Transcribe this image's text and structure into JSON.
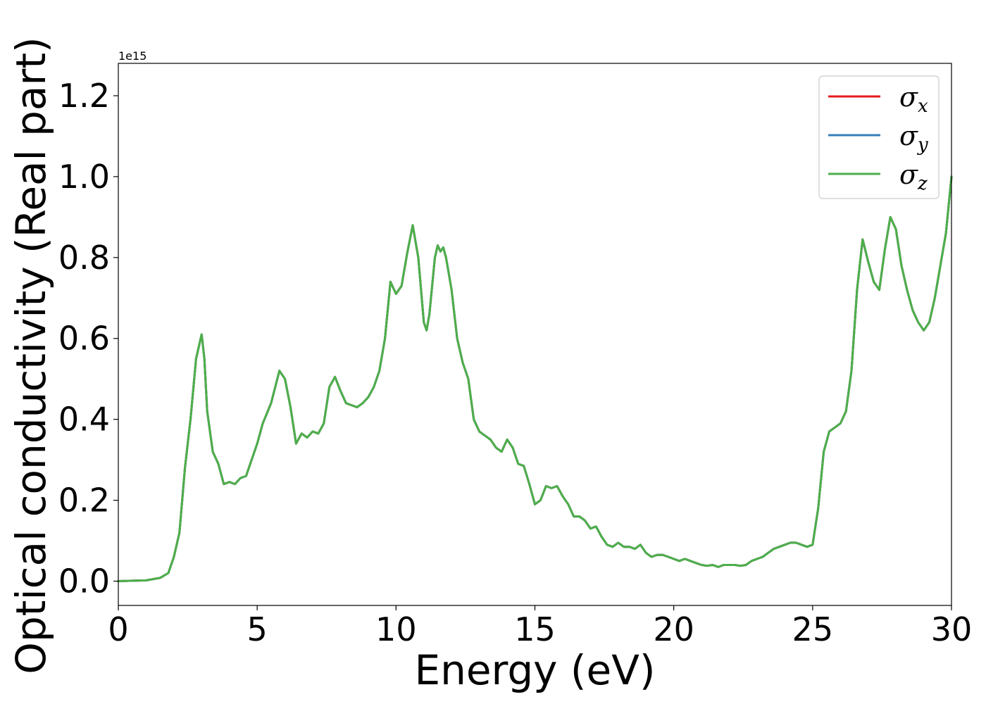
{
  "chart_data": {
    "type": "line",
    "title": "",
    "xlabel": "Energy (eV)",
    "ylabel": "Optical conductivity (Real part)",
    "y_offset_label": "1e15",
    "xlim": [
      0,
      30
    ],
    "ylim": [
      -0.06,
      1.28
    ],
    "grid": false,
    "legend_position": "top-right",
    "x_ticks": [
      0,
      5,
      10,
      15,
      20,
      25,
      30
    ],
    "x_tick_labels": [
      "0",
      "5",
      "10",
      "15",
      "20",
      "25",
      "30"
    ],
    "y_ticks": [
      0.0,
      0.2,
      0.4,
      0.6,
      0.8,
      1.0,
      1.2
    ],
    "y_tick_labels": [
      "0.0",
      "0.2",
      "0.4",
      "0.6",
      "0.8",
      "1.0",
      "1.2"
    ],
    "series": [
      {
        "name": "σx",
        "symbol": "σ",
        "subscript": "x",
        "color": "#e41a1c"
      },
      {
        "name": "σy",
        "symbol": "σ",
        "subscript": "y",
        "color": "#377eb8"
      },
      {
        "name": "σz",
        "symbol": "σ",
        "subscript": "z",
        "color": "#4daf4a"
      }
    ],
    "x": [
      0,
      0.5,
      1.0,
      1.5,
      1.8,
      2.0,
      2.2,
      2.4,
      2.6,
      2.8,
      3.0,
      3.1,
      3.2,
      3.4,
      3.6,
      3.8,
      4.0,
      4.2,
      4.4,
      4.6,
      4.8,
      5.0,
      5.2,
      5.5,
      5.8,
      6.0,
      6.2,
      6.4,
      6.6,
      6.8,
      7.0,
      7.2,
      7.4,
      7.6,
      7.8,
      8.0,
      8.2,
      8.4,
      8.6,
      8.8,
      9.0,
      9.2,
      9.4,
      9.6,
      9.8,
      10.0,
      10.2,
      10.4,
      10.6,
      10.8,
      11.0,
      11.1,
      11.2,
      11.4,
      11.5,
      11.6,
      11.7,
      11.8,
      12.0,
      12.2,
      12.4,
      12.6,
      12.8,
      13.0,
      13.2,
      13.4,
      13.6,
      13.8,
      14.0,
      14.2,
      14.4,
      14.6,
      14.8,
      15.0,
      15.2,
      15.4,
      15.6,
      15.8,
      16.0,
      16.2,
      16.4,
      16.6,
      16.8,
      17.0,
      17.2,
      17.4,
      17.6,
      17.8,
      18.0,
      18.2,
      18.4,
      18.6,
      18.8,
      19.0,
      19.2,
      19.4,
      19.6,
      19.8,
      20.0,
      20.2,
      20.4,
      20.6,
      20.8,
      21.0,
      21.2,
      21.4,
      21.6,
      21.8,
      22.0,
      22.2,
      22.4,
      22.6,
      22.8,
      23.0,
      23.2,
      23.4,
      23.6,
      23.8,
      24.0,
      24.2,
      24.4,
      24.6,
      24.8,
      25.0,
      25.2,
      25.4,
      25.6,
      25.8,
      26.0,
      26.2,
      26.4,
      26.6,
      26.8,
      27.0,
      27.2,
      27.4,
      27.6,
      27.8,
      28.0,
      28.2,
      28.4,
      28.6,
      28.8,
      29.0,
      29.2,
      29.4,
      29.6,
      29.8,
      30.0
    ],
    "values": [
      0.0,
      0.001,
      0.002,
      0.008,
      0.02,
      0.06,
      0.12,
      0.28,
      0.4,
      0.55,
      0.61,
      0.55,
      0.42,
      0.32,
      0.29,
      0.24,
      0.245,
      0.24,
      0.255,
      0.26,
      0.3,
      0.34,
      0.39,
      0.44,
      0.52,
      0.5,
      0.43,
      0.34,
      0.365,
      0.355,
      0.37,
      0.365,
      0.39,
      0.48,
      0.505,
      0.47,
      0.44,
      0.435,
      0.43,
      0.44,
      0.455,
      0.48,
      0.52,
      0.6,
      0.74,
      0.71,
      0.73,
      0.81,
      0.88,
      0.8,
      0.64,
      0.62,
      0.66,
      0.8,
      0.83,
      0.815,
      0.825,
      0.8,
      0.72,
      0.6,
      0.54,
      0.5,
      0.4,
      0.37,
      0.36,
      0.35,
      0.33,
      0.32,
      0.35,
      0.33,
      0.29,
      0.285,
      0.24,
      0.19,
      0.2,
      0.235,
      0.23,
      0.235,
      0.21,
      0.19,
      0.16,
      0.16,
      0.15,
      0.13,
      0.135,
      0.11,
      0.09,
      0.085,
      0.095,
      0.085,
      0.085,
      0.08,
      0.09,
      0.07,
      0.06,
      0.065,
      0.065,
      0.06,
      0.055,
      0.05,
      0.055,
      0.05,
      0.045,
      0.04,
      0.038,
      0.04,
      0.035,
      0.04,
      0.04,
      0.04,
      0.038,
      0.04,
      0.05,
      0.055,
      0.06,
      0.07,
      0.08,
      0.085,
      0.09,
      0.095,
      0.095,
      0.09,
      0.085,
      0.09,
      0.18,
      0.32,
      0.37,
      0.38,
      0.39,
      0.42,
      0.52,
      0.72,
      0.845,
      0.79,
      0.74,
      0.72,
      0.82,
      0.9,
      0.87,
      0.78,
      0.72,
      0.67,
      0.64,
      0.62,
      0.64,
      0.7,
      0.78,
      0.86,
      1.0
    ]
  }
}
